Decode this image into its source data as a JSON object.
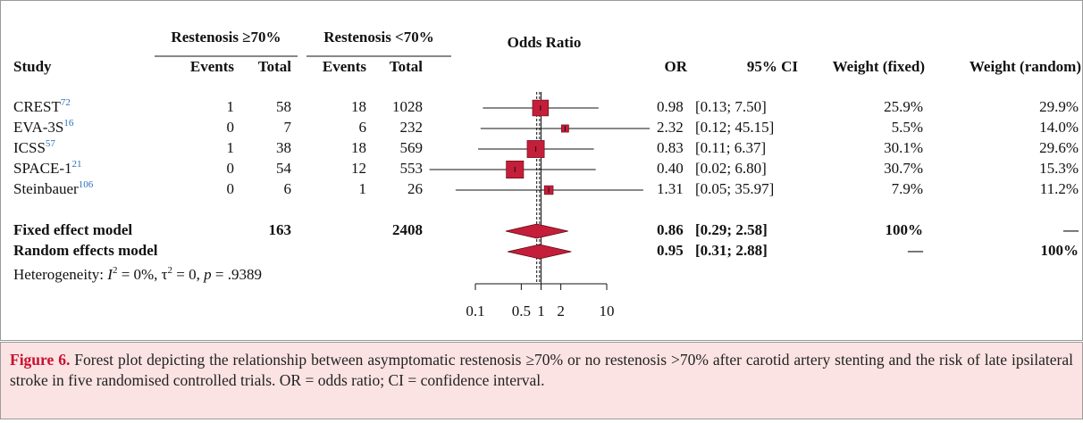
{
  "chart_data": {
    "type": "forest",
    "title": "Odds Ratio",
    "xscale": "log",
    "xlim": [
      0.1,
      10
    ],
    "xticks": [
      0.1,
      0.5,
      1,
      2,
      10
    ],
    "color": "#c41e3a",
    "group_headers": [
      "Restenosis ≥70%",
      "Restenosis <70%"
    ],
    "columns": {
      "study": "Study",
      "events_1": "Events",
      "total_1": "Total",
      "events_2": "Events",
      "total_2": "Total",
      "or": "OR",
      "ci": "95% CI",
      "weight_fixed": "Weight (fixed)",
      "weight_random": "Weight (random)"
    },
    "studies": [
      {
        "name": "CREST",
        "ref": "72",
        "events_1": 1,
        "total_1": 58,
        "events_2": 18,
        "total_2": 1028,
        "or": 0.98,
        "ci": [
          0.13,
          7.5
        ],
        "ci_label": "[0.13; 7.50]",
        "weight_fixed": {
          "value": 25.9,
          "label": "25.9%"
        },
        "weight_random": {
          "value": 29.9,
          "label": "29.9%"
        }
      },
      {
        "name": "EVA-3S",
        "ref": "16",
        "events_1": 0,
        "total_1": 7,
        "events_2": 6,
        "total_2": 232,
        "or": 2.32,
        "ci": [
          0.12,
          45.15
        ],
        "ci_label": "[0.12; 45.15]",
        "weight_fixed": {
          "value": 5.5,
          "label": "5.5%"
        },
        "weight_random": {
          "value": 14.0,
          "label": "14.0%"
        }
      },
      {
        "name": "ICSS",
        "ref": "57",
        "events_1": 1,
        "total_1": 38,
        "events_2": 18,
        "total_2": 569,
        "or": 0.83,
        "ci": [
          0.11,
          6.37
        ],
        "ci_label": "[0.11; 6.37]",
        "weight_fixed": {
          "value": 30.1,
          "label": "30.1%"
        },
        "weight_random": {
          "value": 29.6,
          "label": "29.6%"
        }
      },
      {
        "name": "SPACE-1",
        "ref": "21",
        "events_1": 0,
        "total_1": 54,
        "events_2": 12,
        "total_2": 553,
        "or": {
          "value": 0.4,
          "label": "0.40"
        },
        "ci": [
          0.02,
          6.8
        ],
        "ci_label": "[0.02; 6.80]",
        "weight_fixed": {
          "value": 30.7,
          "label": "30.7%"
        },
        "weight_random": {
          "value": 15.3,
          "label": "15.3%"
        }
      },
      {
        "name": "Steinbauer",
        "ref": "106",
        "events_1": 0,
        "total_1": 6,
        "events_2": 1,
        "total_2": 26,
        "or": 1.31,
        "ci": [
          0.05,
          35.97
        ],
        "ci_label": "[0.05; 35.97]",
        "weight_fixed": {
          "value": 7.9,
          "label": "7.9%"
        },
        "weight_random": {
          "value": 11.2,
          "label": "11.2%"
        }
      }
    ],
    "summary": [
      {
        "name": "Fixed effect model",
        "total_1": 163,
        "total_2": 2408,
        "or": 0.86,
        "ci": [
          0.29,
          2.58
        ],
        "ci_label": "[0.29; 2.58]",
        "weight_fixed": "100%",
        "weight_random": "—"
      },
      {
        "name": "Random effects model",
        "or": 0.95,
        "ci": [
          0.31,
          2.88
        ],
        "ci_label": "[0.31; 2.88]",
        "weight_fixed": "—",
        "weight_random": "100%"
      }
    ],
    "heterogeneity": [
      {
        "text": "Heterogeneity: "
      },
      {
        "text": "I",
        "italic": true
      },
      {
        "text": "2",
        "sup": true
      },
      {
        "text": " = 0%, τ"
      },
      {
        "text": "2",
        "sup": true
      },
      {
        "text": " = 0, "
      },
      {
        "text": "p",
        "italic": true
      },
      {
        "text": " = .9389"
      }
    ]
  },
  "caption": {
    "label": "Figure 6.",
    "text": " Forest plot depicting the relationship between asymptomatic restenosis ≥70% or no restenosis >70% after carotid artery stenting and the risk of late ipsilateral stroke in five randomised controlled trials. OR = odds ratio; CI = confidence interval."
  }
}
